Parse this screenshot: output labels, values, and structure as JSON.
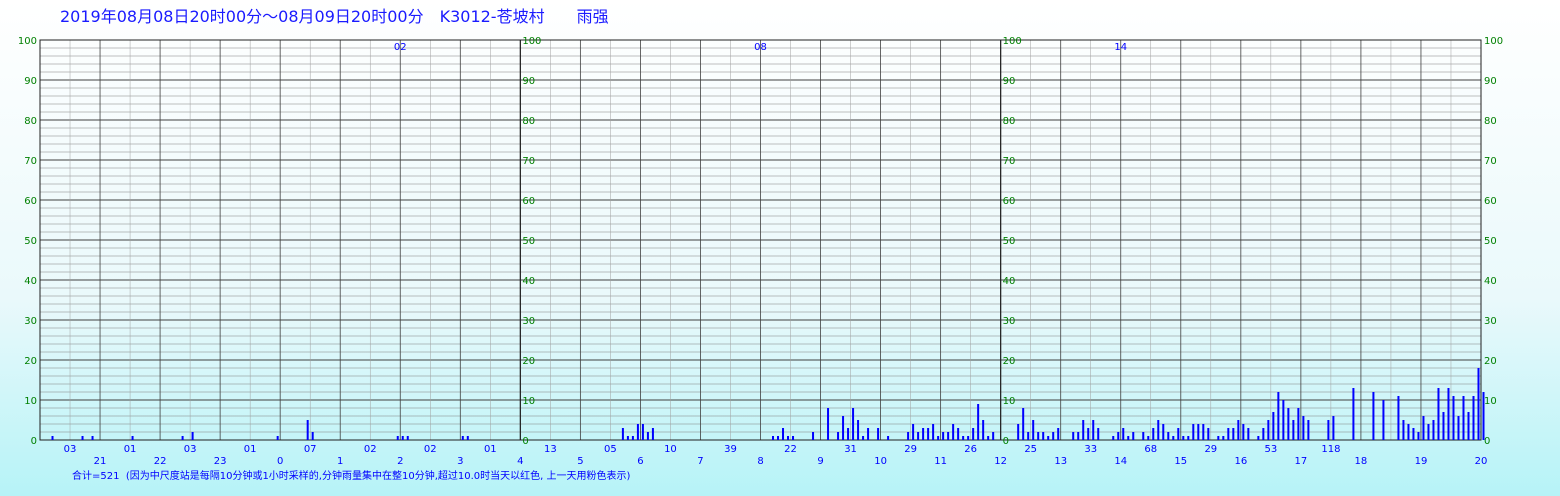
{
  "header": {
    "title": "2019年08月08日20时00分～08月09日20时00分　K3012-苍坡村　　雨强"
  },
  "footer": {
    "note": "合计=521  (因为中尺度站是每隔10分钟或1小时采样的,分钟雨量集中在整10分钟,超过10.0时当天以红色, 上一天用粉色表示)"
  },
  "colors": {
    "bar": "#0000ff",
    "tick_label": "#008000",
    "annotation": "#0000ff",
    "grid_minor": "#808080",
    "grid_major": "#404040"
  },
  "chart_data": {
    "type": "bar",
    "y_ticks": [
      "0",
      "10",
      "20",
      "30",
      "40",
      "50",
      "60",
      "70",
      "80",
      "90",
      "100"
    ],
    "ylim": [
      0,
      100
    ],
    "panels": [
      "02",
      "08",
      "14"
    ],
    "hour_labels": [
      "21",
      "22",
      "23",
      "0",
      "1",
      "2",
      "3",
      "4",
      "5",
      "6",
      "7",
      "8",
      "9",
      "10",
      "11",
      "12",
      "13",
      "14",
      "15",
      "16",
      "17",
      "18",
      "19",
      "20"
    ],
    "annotations": [
      "03",
      "01",
      "03",
      "01",
      "07",
      "02",
      "02",
      "01",
      "13",
      "05",
      "10",
      "39",
      "22",
      "31",
      "29",
      "26",
      "25",
      "33",
      "68",
      "29",
      "53",
      "118"
    ],
    "grid": true,
    "bars": [
      {
        "t": 2,
        "v": 1
      },
      {
        "t": 8,
        "v": 1
      },
      {
        "t": 10,
        "v": 1
      },
      {
        "t": 18,
        "v": 1
      },
      {
        "t": 28,
        "v": 1
      },
      {
        "t": 30,
        "v": 2
      },
      {
        "t": 47,
        "v": 1
      },
      {
        "t": 53,
        "v": 5
      },
      {
        "t": 54,
        "v": 2
      },
      {
        "t": 71,
        "v": 1
      },
      {
        "t": 72,
        "v": 1
      },
      {
        "t": 73,
        "v": 1
      },
      {
        "t": 84,
        "v": 1
      },
      {
        "t": 85,
        "v": 1
      },
      {
        "t": 116,
        "v": 3
      },
      {
        "t": 117,
        "v": 1
      },
      {
        "t": 118,
        "v": 1
      },
      {
        "t": 119,
        "v": 4
      },
      {
        "t": 120,
        "v": 4
      },
      {
        "t": 121,
        "v": 2
      },
      {
        "t": 122,
        "v": 3
      },
      {
        "t": 146,
        "v": 1
      },
      {
        "t": 147,
        "v": 1
      },
      {
        "t": 148,
        "v": 3
      },
      {
        "t": 149,
        "v": 1
      },
      {
        "t": 150,
        "v": 1
      },
      {
        "t": 154,
        "v": 2
      },
      {
        "t": 157,
        "v": 8
      },
      {
        "t": 159,
        "v": 2
      },
      {
        "t": 160,
        "v": 6
      },
      {
        "t": 161,
        "v": 3
      },
      {
        "t": 162,
        "v": 8
      },
      {
        "t": 163,
        "v": 5
      },
      {
        "t": 164,
        "v": 1
      },
      {
        "t": 165,
        "v": 3
      },
      {
        "t": 167,
        "v": 3
      },
      {
        "t": 169,
        "v": 1
      },
      {
        "t": 173,
        "v": 2
      },
      {
        "t": 174,
        "v": 4
      },
      {
        "t": 175,
        "v": 2
      },
      {
        "t": 176,
        "v": 3
      },
      {
        "t": 177,
        "v": 3
      },
      {
        "t": 178,
        "v": 4
      },
      {
        "t": 179,
        "v": 1
      },
      {
        "t": 180,
        "v": 2
      },
      {
        "t": 181,
        "v": 2
      },
      {
        "t": 182,
        "v": 4
      },
      {
        "t": 183,
        "v": 3
      },
      {
        "t": 184,
        "v": 1
      },
      {
        "t": 185,
        "v": 1
      },
      {
        "t": 186,
        "v": 3
      },
      {
        "t": 187,
        "v": 9
      },
      {
        "t": 188,
        "v": 5
      },
      {
        "t": 189,
        "v": 1
      },
      {
        "t": 190,
        "v": 2
      },
      {
        "t": 195,
        "v": 4
      },
      {
        "t": 196,
        "v": 8
      },
      {
        "t": 197,
        "v": 2
      },
      {
        "t": 198,
        "v": 5
      },
      {
        "t": 199,
        "v": 2
      },
      {
        "t": 200,
        "v": 2
      },
      {
        "t": 201,
        "v": 1
      },
      {
        "t": 202,
        "v": 2
      },
      {
        "t": 203,
        "v": 3
      },
      {
        "t": 206,
        "v": 2
      },
      {
        "t": 207,
        "v": 2
      },
      {
        "t": 208,
        "v": 5
      },
      {
        "t": 209,
        "v": 3
      },
      {
        "t": 210,
        "v": 5
      },
      {
        "t": 211,
        "v": 3
      },
      {
        "t": 214,
        "v": 1
      },
      {
        "t": 215,
        "v": 2
      },
      {
        "t": 216,
        "v": 3
      },
      {
        "t": 217,
        "v": 1
      },
      {
        "t": 218,
        "v": 2
      },
      {
        "t": 220,
        "v": 2
      },
      {
        "t": 221,
        "v": 1
      },
      {
        "t": 222,
        "v": 3
      },
      {
        "t": 223,
        "v": 5
      },
      {
        "t": 224,
        "v": 4
      },
      {
        "t": 225,
        "v": 2
      },
      {
        "t": 226,
        "v": 1
      },
      {
        "t": 227,
        "v": 3
      },
      {
        "t": 228,
        "v": 1
      },
      {
        "t": 229,
        "v": 1
      },
      {
        "t": 230,
        "v": 4
      },
      {
        "t": 231,
        "v": 4
      },
      {
        "t": 232,
        "v": 4
      },
      {
        "t": 233,
        "v": 3
      },
      {
        "t": 235,
        "v": 1
      },
      {
        "t": 236,
        "v": 1
      },
      {
        "t": 237,
        "v": 3
      },
      {
        "t": 238,
        "v": 3
      },
      {
        "t": 239,
        "v": 5
      },
      {
        "t": 240,
        "v": 4
      },
      {
        "t": 241,
        "v": 3
      },
      {
        "t": 243,
        "v": 1
      },
      {
        "t": 244,
        "v": 3
      },
      {
        "t": 245,
        "v": 5
      },
      {
        "t": 246,
        "v": 7
      },
      {
        "t": 247,
        "v": 12
      },
      {
        "t": 248,
        "v": 10
      },
      {
        "t": 249,
        "v": 8
      },
      {
        "t": 250,
        "v": 5
      },
      {
        "t": 251,
        "v": 8
      },
      {
        "t": 252,
        "v": 6
      },
      {
        "t": 253,
        "v": 5
      },
      {
        "t": 257,
        "v": 5
      },
      {
        "t": 258,
        "v": 6
      },
      {
        "t": 262,
        "v": 13
      },
      {
        "t": 266,
        "v": 12
      },
      {
        "t": 268,
        "v": 10
      },
      {
        "t": 271,
        "v": 11
      },
      {
        "t": 272,
        "v": 5
      },
      {
        "t": 273,
        "v": 4
      },
      {
        "t": 274,
        "v": 3
      },
      {
        "t": 275,
        "v": 2
      },
      {
        "t": 276,
        "v": 6
      },
      {
        "t": 277,
        "v": 4
      },
      {
        "t": 278,
        "v": 5
      },
      {
        "t": 279,
        "v": 13
      },
      {
        "t": 280,
        "v": 7
      },
      {
        "t": 281,
        "v": 13
      },
      {
        "t": 282,
        "v": 11
      },
      {
        "t": 283,
        "v": 6
      },
      {
        "t": 284,
        "v": 11
      },
      {
        "t": 285,
        "v": 7
      },
      {
        "t": 286,
        "v": 11
      },
      {
        "t": 287,
        "v": 18
      },
      {
        "t": 288,
        "v": 12
      }
    ]
  }
}
